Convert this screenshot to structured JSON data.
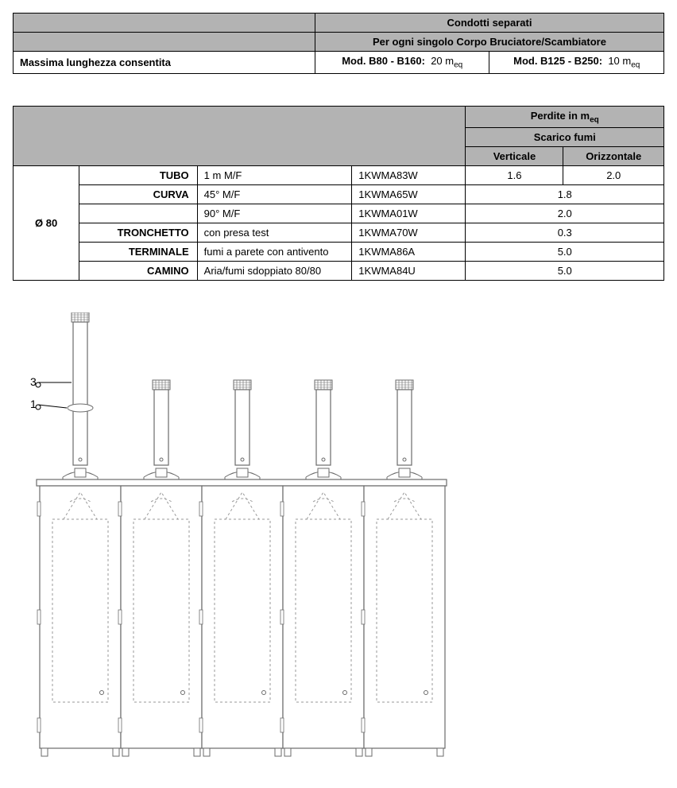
{
  "table1": {
    "header1": "Condotti separati",
    "header2": "Per ogni singolo Corpo Bruciatore/Scambiatore",
    "row_label": "Massima lunghezza consentita",
    "col1_label": "Mod. B80 - B160:",
    "col1_val": "20 m",
    "col1_sub": "eq",
    "col2_label": "Mod. B125 - B250:",
    "col2_val": "10 m",
    "col2_sub": "eq"
  },
  "table2": {
    "hdr_perdite": "Perdite in m",
    "hdr_perdite_sub": "eq",
    "hdr_scarico": "Scarico fumi",
    "hdr_vert": "Verticale",
    "hdr_oriz": "Orizzontale",
    "diam": "Ø 80",
    "rows": [
      {
        "type": "TUBO",
        "desc": "1 m M/F",
        "code": "1KWMA83W",
        "v": "1.6",
        "o": "2.0"
      },
      {
        "type": "CURVA",
        "desc": "45° M/F",
        "code": "1KWMA65W",
        "merged": "1.8"
      },
      {
        "type": "",
        "desc": "90° M/F",
        "code": "1KWMA01W",
        "merged": "2.0"
      },
      {
        "type": "TRONCHETTO",
        "desc": "con presa test",
        "code": "1KWMA70W",
        "merged": "0.3"
      },
      {
        "type": "TERMINALE",
        "desc": "fumi a parete con antivento",
        "code": "1KWMA86A",
        "merged": "5.0"
      },
      {
        "type": "CAMINO",
        "desc": "Aria/fumi sdoppiato 80/80",
        "code": "1KWMA84U",
        "merged": "5.0"
      }
    ]
  },
  "diagram": {
    "callout1": "3",
    "callout2": "1",
    "colors": {
      "stroke": "#6b6b6b",
      "fill": "#fff",
      "dash": "#9a9a9a"
    }
  }
}
